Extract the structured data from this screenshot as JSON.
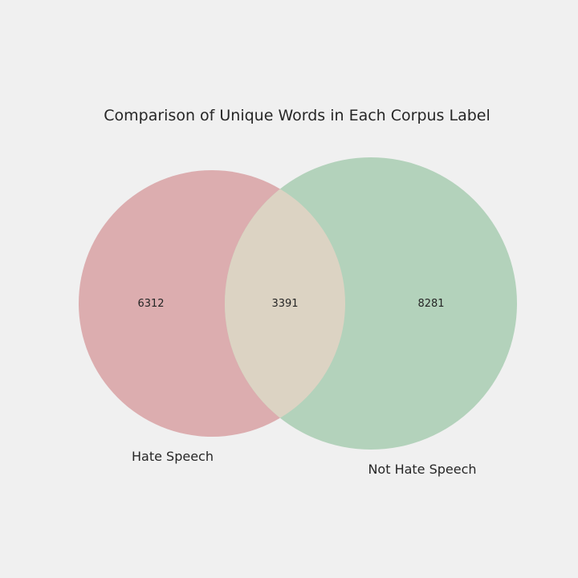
{
  "chart_data": {
    "type": "venn",
    "title": "Comparison of Unique Words in Each Corpus Label",
    "sets": [
      {
        "name": "Hate Speech",
        "only_count": 6312,
        "color": "#dcadaf"
      },
      {
        "name": "Not Hate Speech",
        "only_count": 8281,
        "color": "#b3d2bb"
      }
    ],
    "intersection": {
      "count": 3391,
      "color": "#dcd3c3"
    },
    "background": "#f0f0f0"
  }
}
